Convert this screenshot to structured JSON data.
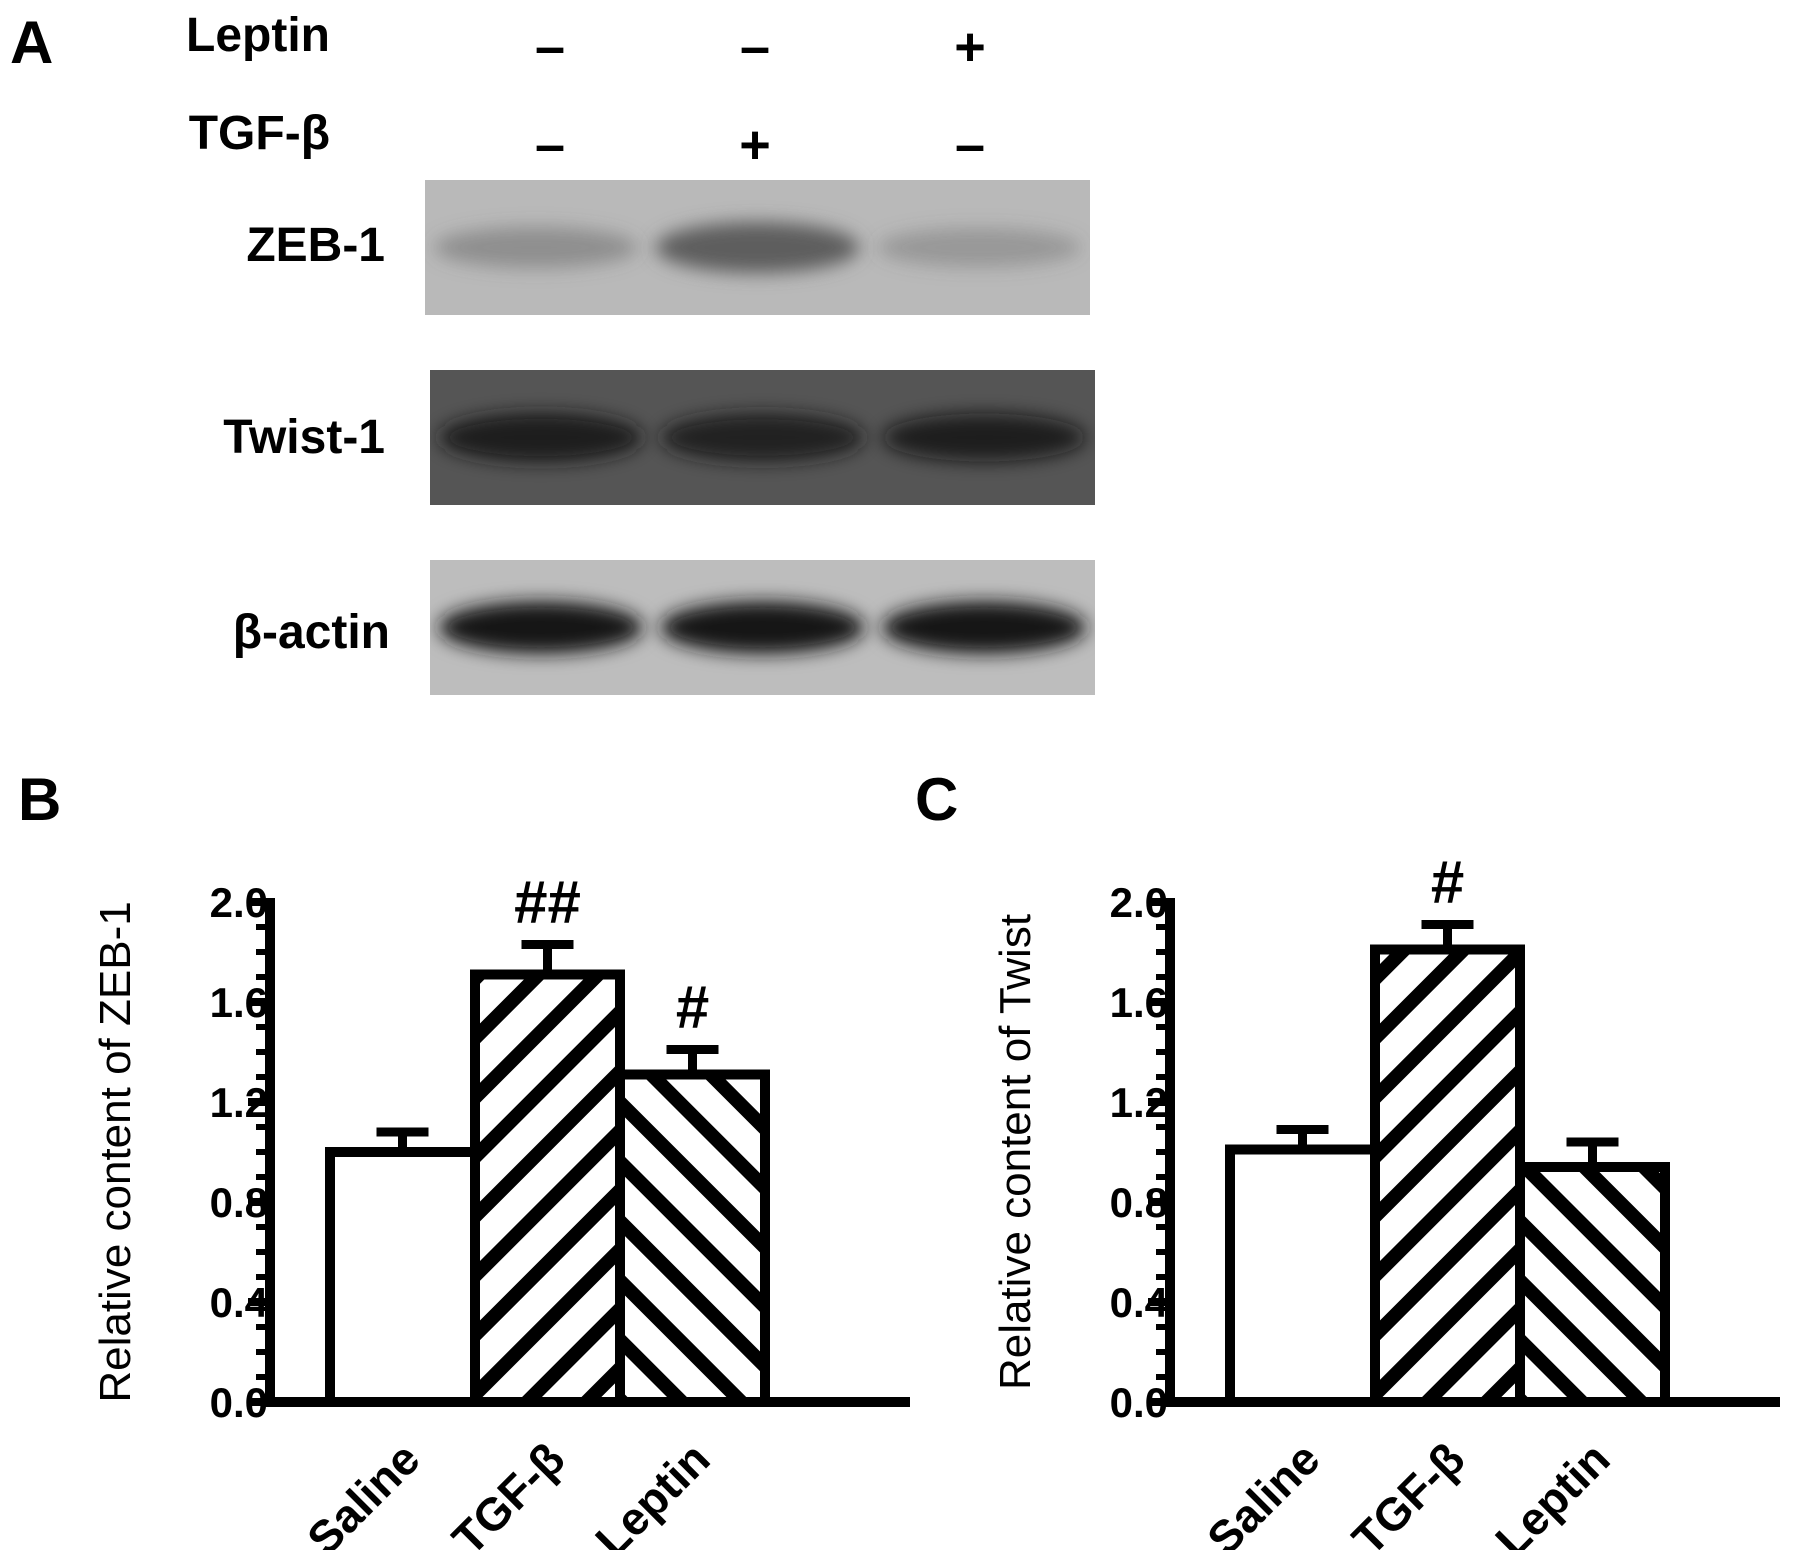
{
  "panelA": {
    "letter": "A",
    "treatments": [
      {
        "label": "Leptin",
        "signs": [
          "–",
          "–",
          "+"
        ]
      },
      {
        "label": "TGF-β",
        "signs": [
          "–",
          "+",
          "–"
        ]
      }
    ],
    "bands": [
      {
        "label": "ZEB-1",
        "bg": "#b9b9b9",
        "band": "#5a5a5a",
        "intensities": [
          0.45,
          0.95,
          0.35
        ]
      },
      {
        "label": "Twist-1",
        "bg": "#555555",
        "band": "#141414",
        "intensities": [
          0.9,
          0.85,
          0.8
        ]
      },
      {
        "label": "β-actin",
        "bg": "#bdbdbd",
        "band": "#151515",
        "intensities": [
          1.0,
          1.0,
          1.0
        ]
      }
    ]
  },
  "chart_data": [
    {
      "panel": "B",
      "type": "bar",
      "categories": [
        "Saline",
        "TGF-β",
        "Leptin"
      ],
      "values": [
        1.0,
        1.71,
        1.31
      ],
      "errors": [
        0.08,
        0.12,
        0.1
      ],
      "patterns": [
        "none",
        "hatch-forward",
        "hatch-back"
      ],
      "annotations": [
        "",
        "##",
        "#"
      ],
      "ylabel": "Relative content of ZEB-1",
      "ylim": [
        0,
        2.0
      ],
      "yticks": [
        "0.0",
        "0.4",
        "0.8",
        "1.2",
        "1.6",
        "2.0"
      ]
    },
    {
      "panel": "C",
      "type": "bar",
      "categories": [
        "Saline",
        "TGF-β",
        "Leptin"
      ],
      "values": [
        1.01,
        1.81,
        0.94
      ],
      "errors": [
        0.08,
        0.1,
        0.1
      ],
      "patterns": [
        "none",
        "hatch-forward",
        "hatch-back"
      ],
      "annotations": [
        "",
        "#",
        ""
      ],
      "ylabel": "Relative content of Twist",
      "ylim": [
        0,
        2.0
      ],
      "yticks": [
        "0.0",
        "0.4",
        "0.8",
        "1.2",
        "1.6",
        "2.0"
      ]
    }
  ]
}
